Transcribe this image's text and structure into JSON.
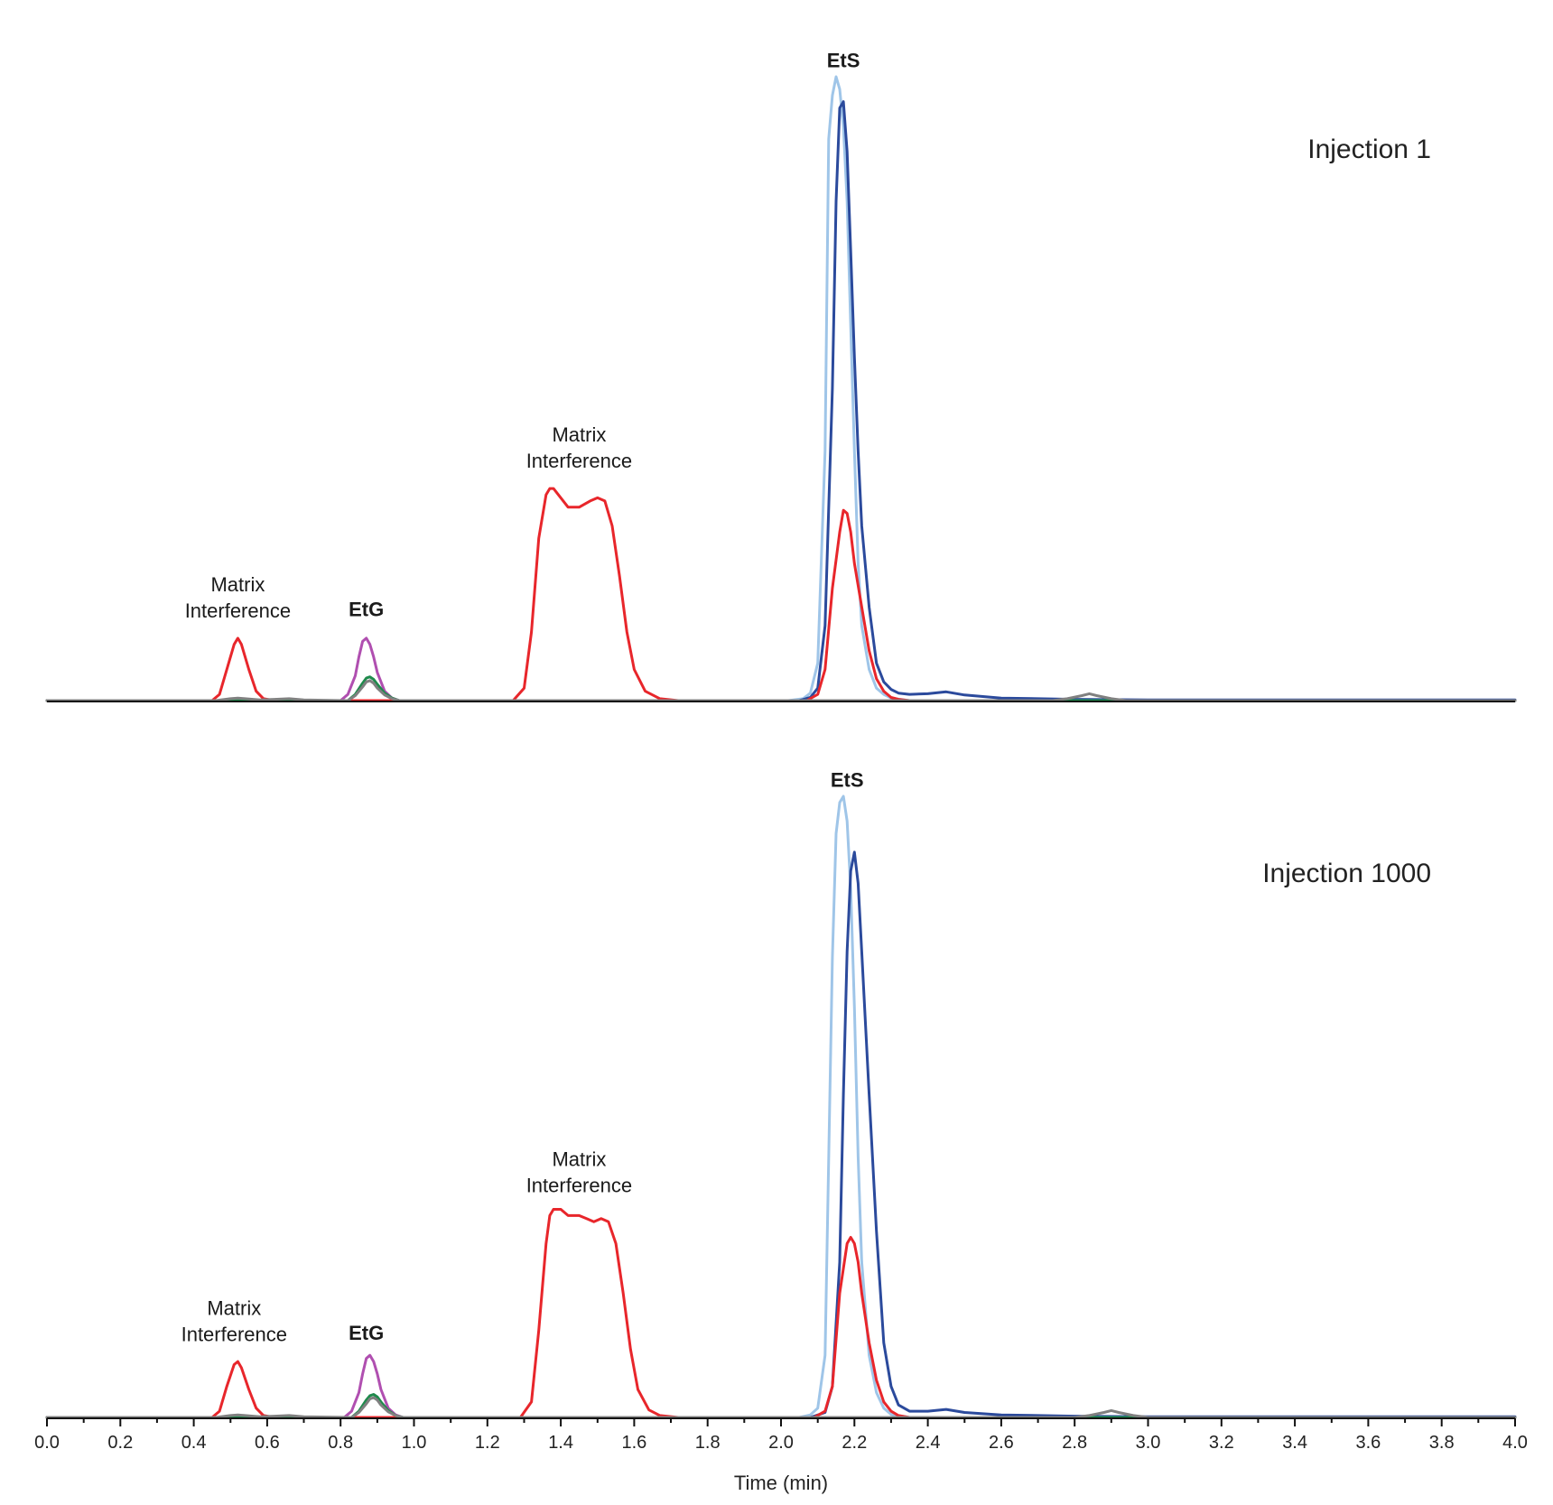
{
  "chart_data": [
    {
      "type": "line",
      "panel_label": "Injection 1",
      "xlabel": "",
      "xlim": [
        0.0,
        4.0
      ],
      "ylim": [
        0,
        100
      ],
      "grid": false,
      "annotations": [
        {
          "text": [
            "Matrix",
            "Interference"
          ],
          "x": 0.52,
          "y": 17.5,
          "bold": false
        },
        {
          "text": [
            "EtG"
          ],
          "x": 0.87,
          "y": 13.5,
          "bold": true
        },
        {
          "text": [
            "Matrix",
            "Interference"
          ],
          "x": 1.45,
          "y": 41.5,
          "bold": false
        },
        {
          "text": [
            "EtS"
          ],
          "x": 2.17,
          "y": 101.5,
          "bold": true
        }
      ],
      "series": [
        {
          "color": "#9fc5e8",
          "width": 3,
          "x": [
            0.0,
            2.02,
            2.06,
            2.08,
            2.1,
            2.12,
            2.13,
            2.14,
            2.15,
            2.16,
            2.17,
            2.18,
            2.19,
            2.2,
            2.21,
            2.22,
            2.24,
            2.26,
            2.28,
            2.3,
            2.35,
            4.0
          ],
          "y": [
            0,
            0,
            0.3,
            1.2,
            6,
            40,
            90,
            97,
            100,
            98,
            92,
            80,
            60,
            40,
            22,
            12,
            5,
            2,
            1,
            0.4,
            0,
            0
          ]
        },
        {
          "color": "#2b4a9c",
          "width": 3,
          "x": [
            0.0,
            2.05,
            2.08,
            2.1,
            2.12,
            2.14,
            2.15,
            2.16,
            2.17,
            2.18,
            2.19,
            2.2,
            2.21,
            2.22,
            2.24,
            2.26,
            2.28,
            2.3,
            2.32,
            2.35,
            2.4,
            2.45,
            2.5,
            2.6,
            2.8,
            3.0,
            4.0
          ],
          "y": [
            0,
            0,
            0.5,
            2,
            12,
            50,
            80,
            95,
            96,
            88,
            72,
            55,
            40,
            28,
            15,
            6,
            3,
            1.8,
            1.2,
            1.0,
            1.1,
            1.4,
            0.9,
            0.4,
            0.2,
            0.1,
            0.1
          ]
        },
        {
          "color": "#e8262b",
          "width": 3,
          "x": [
            0.0,
            0.45,
            0.47,
            0.49,
            0.51,
            0.52,
            0.53,
            0.55,
            0.57,
            0.59,
            0.62,
            1.27,
            1.3,
            1.32,
            1.34,
            1.36,
            1.37,
            1.38,
            1.4,
            1.42,
            1.45,
            1.48,
            1.5,
            1.52,
            1.54,
            1.56,
            1.58,
            1.6,
            1.63,
            1.67,
            1.72,
            2.07,
            2.1,
            2.12,
            2.14,
            2.16,
            2.17,
            2.18,
            2.19,
            2.2,
            2.22,
            2.24,
            2.26,
            2.28,
            2.3,
            2.32,
            2.35,
            4.0
          ],
          "y": [
            0,
            0,
            1,
            5,
            9,
            10,
            9,
            5,
            1.5,
            0.3,
            0,
            0,
            2,
            11,
            26,
            33,
            34,
            34,
            32.5,
            31,
            31,
            32,
            32.5,
            32,
            28,
            20,
            11,
            5,
            1.5,
            0.3,
            0,
            0,
            1,
            5,
            18,
            27,
            30.5,
            30,
            27,
            22,
            15,
            8,
            3.5,
            1.5,
            0.5,
            0.2,
            0,
            0
          ]
        },
        {
          "color": "#b04fb0",
          "width": 3,
          "x": [
            0.0,
            0.8,
            0.82,
            0.84,
            0.85,
            0.86,
            0.87,
            0.88,
            0.89,
            0.9,
            0.92,
            0.94,
            0.96,
            4.0
          ],
          "y": [
            0,
            0,
            1,
            4,
            7,
            9.5,
            10,
            9,
            7,
            4.5,
            1.5,
            0.4,
            0,
            0
          ]
        },
        {
          "color": "#1f8a4c",
          "width": 3,
          "x": [
            0.0,
            0.82,
            0.84,
            0.86,
            0.87,
            0.88,
            0.89,
            0.9,
            0.92,
            0.94,
            0.96,
            4.0
          ],
          "y": [
            0,
            0,
            1,
            2.8,
            3.6,
            3.8,
            3.4,
            2.6,
            1.2,
            0.4,
            0,
            0
          ]
        },
        {
          "color": "#808080",
          "width": 3,
          "x": [
            0.0,
            0.46,
            0.5,
            0.52,
            0.54,
            0.58,
            0.62,
            0.66,
            0.7,
            0.82,
            0.84,
            0.86,
            0.87,
            0.88,
            0.89,
            0.9,
            0.92,
            0.94,
            0.96,
            2.74,
            2.78,
            2.82,
            2.84,
            2.86,
            2.9,
            2.94,
            4.0
          ],
          "y": [
            0,
            0,
            0.3,
            0.4,
            0.3,
            0.1,
            0.2,
            0.3,
            0.1,
            0,
            0.8,
            2.2,
            3.0,
            3.2,
            2.8,
            2.0,
            0.9,
            0.3,
            0,
            0,
            0.3,
            0.8,
            1.1,
            0.8,
            0.3,
            0,
            0
          ]
        }
      ]
    },
    {
      "type": "line",
      "panel_label": "Injection 1000",
      "xlabel": "Time (min)",
      "xlim": [
        0.0,
        4.0
      ],
      "ylim": [
        0,
        100
      ],
      "grid": false,
      "xticks": [
        "0.0",
        "0.2",
        "0.4",
        "0.6",
        "0.8",
        "1.0",
        "1.2",
        "1.4",
        "1.6",
        "1.8",
        "2.0",
        "2.2",
        "2.4",
        "2.6",
        "2.8",
        "3.0",
        "3.2",
        "3.4",
        "3.6",
        "3.8",
        "4.0"
      ],
      "annotations": [
        {
          "text": [
            "Matrix",
            "Interference"
          ],
          "x": 0.51,
          "y": 16.5,
          "bold": false
        },
        {
          "text": [
            "EtG"
          ],
          "x": 0.87,
          "y": 12.5,
          "bold": true
        },
        {
          "text": [
            "Matrix",
            "Interference"
          ],
          "x": 1.45,
          "y": 40.5,
          "bold": false
        },
        {
          "text": [
            "EtS"
          ],
          "x": 2.18,
          "y": 101.5,
          "bold": true
        }
      ],
      "series": [
        {
          "color": "#9fc5e8",
          "width": 3,
          "x": [
            0.0,
            2.05,
            2.08,
            2.1,
            2.12,
            2.14,
            2.15,
            2.16,
            2.17,
            2.18,
            2.19,
            2.2,
            2.21,
            2.22,
            2.24,
            2.26,
            2.28,
            2.3,
            2.35,
            4.0
          ],
          "y": [
            0,
            0,
            0.4,
            1.5,
            10,
            74,
            94,
            99,
            100,
            96,
            85,
            66,
            42,
            25,
            10,
            4,
            1.5,
            0.5,
            0,
            0
          ]
        },
        {
          "color": "#2b4a9c",
          "width": 3,
          "x": [
            0.0,
            2.08,
            2.12,
            2.14,
            2.16,
            2.17,
            2.18,
            2.19,
            2.2,
            2.21,
            2.22,
            2.24,
            2.26,
            2.28,
            2.3,
            2.32,
            2.35,
            2.4,
            2.45,
            2.5,
            2.6,
            2.8,
            3.0,
            4.0
          ],
          "y": [
            0,
            0,
            0.8,
            5,
            25,
            52,
            75,
            88,
            91,
            86,
            75,
            52,
            30,
            12,
            5,
            2,
            1,
            1.0,
            1.3,
            0.8,
            0.4,
            0.2,
            0.1,
            0.1
          ]
        },
        {
          "color": "#e8262b",
          "width": 3,
          "x": [
            0.0,
            0.45,
            0.47,
            0.49,
            0.51,
            0.52,
            0.53,
            0.55,
            0.57,
            0.59,
            0.62,
            1.29,
            1.32,
            1.34,
            1.36,
            1.37,
            1.38,
            1.4,
            1.42,
            1.45,
            1.47,
            1.49,
            1.51,
            1.53,
            1.55,
            1.57,
            1.59,
            1.61,
            1.64,
            1.67,
            1.72,
            2.09,
            2.12,
            2.14,
            2.16,
            2.18,
            2.19,
            2.2,
            2.21,
            2.22,
            2.24,
            2.26,
            2.28,
            2.3,
            2.32,
            2.35,
            4.0
          ],
          "y": [
            0,
            0,
            1,
            5,
            8.5,
            9,
            8,
            4.5,
            1.5,
            0.3,
            0,
            0,
            2.5,
            14,
            28,
            32.5,
            33.5,
            33.5,
            32.5,
            32.5,
            32,
            31.5,
            32,
            31.5,
            28,
            20,
            11,
            4.5,
            1.2,
            0.3,
            0,
            0,
            1,
            5,
            20,
            28,
            29,
            28,
            25,
            20,
            12,
            6,
            2.5,
            1,
            0.3,
            0,
            0
          ]
        },
        {
          "color": "#b04fb0",
          "width": 3,
          "x": [
            0.0,
            0.81,
            0.83,
            0.85,
            0.86,
            0.87,
            0.88,
            0.89,
            0.9,
            0.91,
            0.93,
            0.95,
            0.97,
            4.0
          ],
          "y": [
            0,
            0,
            1,
            4,
            7,
            9.5,
            10,
            9,
            7,
            4.5,
            1.5,
            0.4,
            0,
            0
          ]
        },
        {
          "color": "#1f8a4c",
          "width": 3,
          "x": [
            0.0,
            0.83,
            0.85,
            0.87,
            0.88,
            0.89,
            0.9,
            0.91,
            0.93,
            0.95,
            0.97,
            4.0
          ],
          "y": [
            0,
            0,
            1,
            2.8,
            3.5,
            3.7,
            3.3,
            2.5,
            1.1,
            0.3,
            0,
            0
          ]
        },
        {
          "color": "#808080",
          "width": 3,
          "x": [
            0.0,
            0.46,
            0.5,
            0.52,
            0.54,
            0.58,
            0.62,
            0.66,
            0.7,
            0.83,
            0.85,
            0.87,
            0.88,
            0.89,
            0.9,
            0.91,
            0.93,
            0.95,
            0.97,
            2.8,
            2.84,
            2.88,
            2.9,
            2.92,
            2.96,
            3.0,
            4.0
          ],
          "y": [
            0,
            0,
            0.3,
            0.4,
            0.3,
            0.1,
            0.2,
            0.3,
            0.1,
            0,
            0.8,
            2.2,
            3.0,
            3.2,
            2.8,
            2.0,
            0.9,
            0.3,
            0,
            0,
            0.3,
            0.8,
            1.1,
            0.8,
            0.3,
            0,
            0
          ]
        }
      ]
    }
  ]
}
